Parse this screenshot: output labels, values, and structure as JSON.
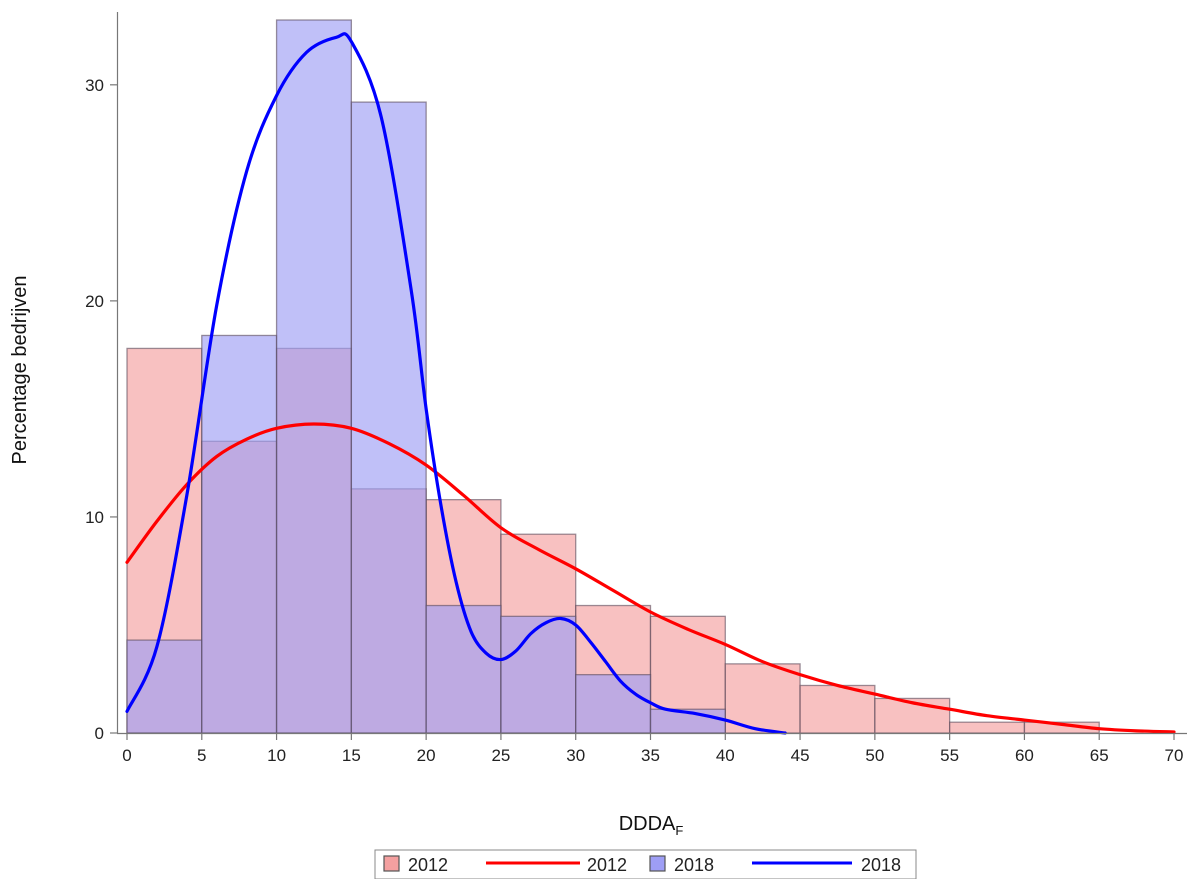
{
  "chart_data": {
    "type": "bar",
    "xlabel": "DDDA",
    "xlabel_subscript": "F",
    "ylabel": "Percentage bedrijven",
    "xlim": [
      0,
      70
    ],
    "ylim": [
      0,
      33
    ],
    "x_ticks": [
      0,
      5,
      10,
      15,
      20,
      25,
      30,
      35,
      40,
      45,
      50,
      55,
      60,
      65,
      70
    ],
    "y_ticks": [
      0,
      10,
      20,
      30
    ],
    "grid": false,
    "legend_position": "bottom",
    "bin_edges": [
      0,
      5,
      10,
      15,
      20,
      25,
      30,
      35,
      40,
      45,
      50,
      55,
      60,
      65
    ],
    "histograms": [
      {
        "name": "2012",
        "color": "#f4a0a0",
        "values": [
          17.8,
          13.5,
          17.8,
          11.3,
          10.8,
          9.2,
          5.9,
          5.4,
          3.2,
          2.2,
          1.6,
          0.5,
          0.5
        ]
      },
      {
        "name": "2018",
        "color": "#9e9ef5",
        "values": [
          4.3,
          18.4,
          33.0,
          29.2,
          5.9,
          5.4,
          2.7,
          1.1
        ]
      }
    ],
    "curves": [
      {
        "name": "2012",
        "color": "#ff0000",
        "x": [
          0,
          2,
          4,
          6,
          8,
          10,
          12.5,
          15,
          17.5,
          20,
          22.5,
          25,
          27.5,
          30,
          32.5,
          35,
          37.5,
          40,
          42.5,
          45,
          47.5,
          50,
          52.5,
          55,
          57.5,
          60,
          62.5,
          65,
          67.5,
          70
        ],
        "y": [
          7.9,
          9.8,
          11.5,
          12.8,
          13.6,
          14.1,
          14.3,
          14.1,
          13.4,
          12.4,
          11.0,
          9.5,
          8.5,
          7.6,
          6.6,
          5.6,
          4.8,
          4.1,
          3.3,
          2.7,
          2.2,
          1.8,
          1.4,
          1.1,
          0.8,
          0.6,
          0.4,
          0.2,
          0.1,
          0.05
        ]
      },
      {
        "name": "2018",
        "color": "#0000ff",
        "x": [
          0,
          2,
          4,
          6,
          8,
          10,
          12,
          14,
          15,
          17,
          19,
          20,
          21,
          22,
          23,
          24,
          25,
          26,
          27,
          28,
          29,
          30,
          31,
          32,
          33,
          34,
          35,
          36,
          38,
          40,
          42,
          44
        ],
        "y": [
          1.0,
          4.0,
          11.0,
          19.8,
          26.0,
          29.5,
          31.5,
          32.2,
          32.0,
          28.5,
          20.5,
          15.0,
          10.5,
          7.0,
          4.7,
          3.7,
          3.4,
          3.8,
          4.6,
          5.1,
          5.3,
          5.0,
          4.2,
          3.3,
          2.4,
          1.8,
          1.4,
          1.1,
          0.9,
          0.6,
          0.2,
          0.0
        ]
      }
    ]
  },
  "legend": [
    {
      "label": "2012",
      "kind": "box",
      "color": "#f4a0a0"
    },
    {
      "label": "2012",
      "kind": "line",
      "color": "#ff0000"
    },
    {
      "label": "2018",
      "kind": "box",
      "color": "#9e9ef5"
    },
    {
      "label": "2018",
      "kind": "line",
      "color": "#0000ff"
    }
  ]
}
